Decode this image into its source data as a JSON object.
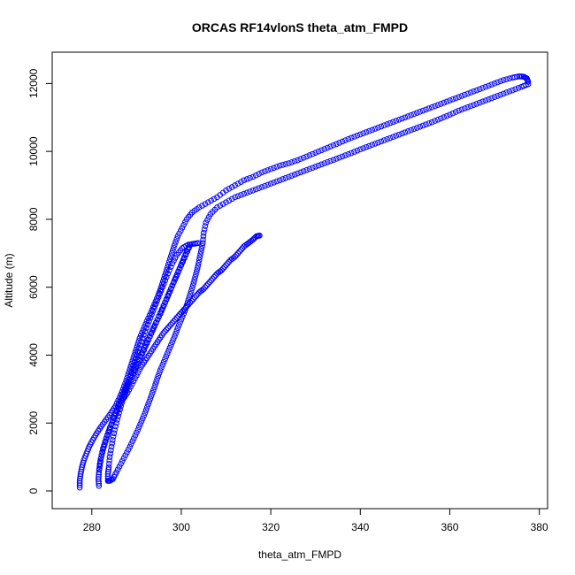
{
  "chart_data": {
    "type": "scatter",
    "title": "ORCAS RF14vlonS theta_atm_FMPD",
    "xlabel": "theta_atm_FMPD",
    "ylabel": "Altitude (m)",
    "xlim": [
      275.5,
      377.5
    ],
    "ylim": [
      0,
      12400
    ],
    "xticks": [
      280,
      300,
      320,
      340,
      360,
      380
    ],
    "yticks": [
      0,
      2000,
      4000,
      6000,
      8000,
      10000,
      12000
    ],
    "marker": "open-circle",
    "marker_color": "#0000ff",
    "grid": false,
    "legend": "none",
    "series": [
      {
        "points": [
          [
            277.3,
            100
          ],
          [
            277.3,
            300
          ],
          [
            277.5,
            500
          ],
          [
            277.8,
            700
          ],
          [
            278.2,
            900
          ],
          [
            278.8,
            1100
          ],
          [
            279.4,
            1300
          ],
          [
            280.2,
            1500
          ],
          [
            281.1,
            1700
          ],
          [
            282.1,
            1900
          ],
          [
            283.2,
            2100
          ],
          [
            284.3,
            2300
          ],
          [
            285.3,
            2500
          ],
          [
            286.2,
            2750
          ],
          [
            287.0,
            3000
          ],
          [
            287.7,
            3250
          ],
          [
            288.3,
            3500
          ],
          [
            288.9,
            3750
          ],
          [
            289.5,
            4000
          ],
          [
            290.1,
            4250
          ],
          [
            290.7,
            4500
          ],
          [
            291.5,
            4750
          ],
          [
            292.3,
            5000
          ],
          [
            293.2,
            5250
          ],
          [
            294.0,
            5500
          ],
          [
            294.8,
            5750
          ],
          [
            295.5,
            6000
          ],
          [
            296.1,
            6250
          ],
          [
            296.7,
            6500
          ],
          [
            297.3,
            6750
          ],
          [
            297.9,
            7000
          ],
          [
            298.5,
            7250
          ],
          [
            299.2,
            7500
          ],
          [
            300.2,
            7750
          ],
          [
            301.2,
            8000
          ],
          [
            302.4,
            8200
          ],
          [
            304.0,
            8350
          ],
          [
            306.0,
            8500
          ],
          [
            308.0,
            8650
          ],
          [
            310.0,
            8850
          ],
          [
            312.0,
            9000
          ],
          [
            314.0,
            9150
          ],
          [
            316.0,
            9250
          ],
          [
            318.0,
            9380
          ],
          [
            320.0,
            9480
          ],
          [
            322.0,
            9580
          ],
          [
            324.0,
            9650
          ],
          [
            326.0,
            9740
          ],
          [
            328.0,
            9850
          ],
          [
            330.0,
            9960
          ],
          [
            332.0,
            10070
          ],
          [
            334.0,
            10180
          ],
          [
            336.0,
            10290
          ],
          [
            338.0,
            10400
          ],
          [
            340.0,
            10500
          ],
          [
            342.0,
            10600
          ],
          [
            344.0,
            10700
          ],
          [
            346.0,
            10800
          ],
          [
            348.0,
            10900
          ],
          [
            350.0,
            11000
          ],
          [
            352.0,
            11100
          ],
          [
            354.0,
            11200
          ],
          [
            356.0,
            11300
          ],
          [
            358.0,
            11400
          ],
          [
            360.0,
            11500
          ],
          [
            362.0,
            11600
          ],
          [
            364.0,
            11700
          ],
          [
            366.0,
            11800
          ],
          [
            368.0,
            11900
          ],
          [
            370.0,
            12000
          ],
          [
            372.0,
            12100
          ],
          [
            374.0,
            12170
          ],
          [
            375.5,
            12210
          ],
          [
            376.5,
            12200
          ],
          [
            377.2,
            12150
          ],
          [
            377.5,
            12050
          ]
        ]
      },
      {
        "points": [
          [
            377.5,
            11980
          ],
          [
            376.0,
            11900
          ],
          [
            374.0,
            11800
          ],
          [
            372.0,
            11700
          ],
          [
            370.0,
            11600
          ],
          [
            368.0,
            11500
          ],
          [
            366.0,
            11400
          ],
          [
            364.0,
            11300
          ],
          [
            362.0,
            11200
          ],
          [
            360.0,
            11080
          ],
          [
            358.0,
            10970
          ],
          [
            356.0,
            10860
          ],
          [
            354.0,
            10760
          ],
          [
            352.0,
            10660
          ],
          [
            350.0,
            10560
          ],
          [
            348.0,
            10460
          ],
          [
            346.0,
            10360
          ],
          [
            344.0,
            10260
          ],
          [
            342.0,
            10160
          ],
          [
            340.0,
            10060
          ],
          [
            338.0,
            9950
          ],
          [
            336.0,
            9850
          ],
          [
            334.0,
            9750
          ],
          [
            332.0,
            9650
          ],
          [
            330.0,
            9550
          ],
          [
            328.0,
            9450
          ],
          [
            326.0,
            9350
          ],
          [
            324.0,
            9250
          ],
          [
            322.0,
            9150
          ],
          [
            320.0,
            9050
          ],
          [
            318.0,
            8950
          ],
          [
            316.0,
            8850
          ],
          [
            314.0,
            8750
          ],
          [
            312.0,
            8650
          ],
          [
            310.0,
            8500
          ],
          [
            308.0,
            8350
          ],
          [
            306.5,
            8150
          ],
          [
            305.5,
            7900
          ],
          [
            305.0,
            7600
          ],
          [
            304.8,
            7300
          ]
        ]
      },
      {
        "points": [
          [
            304.8,
            7300
          ],
          [
            304.4,
            7050
          ],
          [
            304.0,
            6800
          ],
          [
            303.6,
            6550
          ],
          [
            303.1,
            6300
          ],
          [
            302.6,
            6050
          ],
          [
            302.0,
            5800
          ],
          [
            301.4,
            5550
          ],
          [
            300.8,
            5300
          ],
          [
            300.0,
            5050
          ],
          [
            299.2,
            4800
          ],
          [
            298.5,
            4550
          ],
          [
            297.7,
            4300
          ],
          [
            296.9,
            4050
          ],
          [
            296.1,
            3800
          ],
          [
            295.3,
            3550
          ],
          [
            294.6,
            3300
          ],
          [
            294.0,
            3050
          ],
          [
            293.3,
            2800
          ],
          [
            292.6,
            2550
          ],
          [
            291.9,
            2300
          ],
          [
            291.1,
            2050
          ],
          [
            290.3,
            1800
          ],
          [
            289.4,
            1550
          ],
          [
            288.5,
            1300
          ],
          [
            287.5,
            1050
          ],
          [
            286.5,
            800
          ],
          [
            285.5,
            550
          ],
          [
            284.7,
            350
          ],
          [
            284.0,
            300
          ],
          [
            283.6,
            300
          ],
          [
            283.6,
            500
          ],
          [
            283.8,
            700
          ],
          [
            284.0,
            1000
          ],
          [
            284.4,
            1300
          ],
          [
            284.8,
            1600
          ],
          [
            285.3,
            1900
          ],
          [
            285.9,
            2200
          ],
          [
            286.5,
            2500
          ],
          [
            287.2,
            2800
          ],
          [
            287.9,
            3100
          ],
          [
            288.6,
            3400
          ],
          [
            289.3,
            3700
          ],
          [
            290.0,
            4000
          ],
          [
            290.8,
            4300
          ],
          [
            291.6,
            4600
          ],
          [
            292.5,
            4900
          ],
          [
            293.4,
            5200
          ],
          [
            294.3,
            5500
          ],
          [
            295.2,
            5800
          ],
          [
            296.1,
            6100
          ],
          [
            297.0,
            6400
          ],
          [
            298.0,
            6700
          ],
          [
            299.0,
            6950
          ],
          [
            300.2,
            7150
          ],
          [
            301.5,
            7250
          ],
          [
            302.8,
            7280
          ],
          [
            303.8,
            7300
          ]
        ]
      },
      {
        "points": [
          [
            281.6,
            150
          ],
          [
            281.5,
            350
          ],
          [
            281.6,
            550
          ],
          [
            281.8,
            800
          ],
          [
            282.2,
            1050
          ],
          [
            282.7,
            1300
          ],
          [
            283.3,
            1550
          ],
          [
            283.9,
            1800
          ],
          [
            284.6,
            2050
          ],
          [
            285.3,
            2300
          ],
          [
            286.0,
            2550
          ],
          [
            286.8,
            2800
          ],
          [
            287.6,
            3050
          ],
          [
            288.4,
            3300
          ],
          [
            289.3,
            3550
          ],
          [
            290.2,
            3800
          ],
          [
            291.1,
            4050
          ],
          [
            292.0,
            4300
          ],
          [
            292.9,
            4550
          ],
          [
            293.8,
            4800
          ],
          [
            294.7,
            5050
          ],
          [
            295.6,
            5300
          ],
          [
            296.4,
            5550
          ],
          [
            297.2,
            5800
          ],
          [
            298.0,
            6050
          ],
          [
            298.8,
            6300
          ],
          [
            299.6,
            6550
          ],
          [
            300.4,
            6800
          ],
          [
            301.2,
            7050
          ],
          [
            302.0,
            7250
          ],
          [
            301.0,
            6950
          ],
          [
            300.0,
            6650
          ],
          [
            299.0,
            6350
          ],
          [
            298.0,
            6050
          ],
          [
            297.0,
            5750
          ],
          [
            296.0,
            5450
          ],
          [
            295.0,
            5150
          ],
          [
            294.0,
            4850
          ],
          [
            293.0,
            4550
          ],
          [
            292.0,
            4250
          ],
          [
            291.0,
            3950
          ],
          [
            290.0,
            3650
          ],
          [
            289.0,
            3350
          ],
          [
            288.0,
            3050
          ],
          [
            287.0,
            2750
          ],
          [
            286.0,
            2450
          ],
          [
            285.0,
            2150
          ],
          [
            284.0,
            1850
          ],
          [
            283.2,
            1550
          ],
          [
            282.5,
            1250
          ],
          [
            282.0,
            950
          ],
          [
            281.7,
            650
          ]
        ]
      },
      {
        "points": [
          [
            287.0,
            2700
          ],
          [
            288.0,
            2900
          ],
          [
            289.0,
            3150
          ],
          [
            290.0,
            3400
          ],
          [
            291.0,
            3650
          ],
          [
            292.0,
            3850
          ],
          [
            293.0,
            4050
          ],
          [
            294.0,
            4250
          ],
          [
            295.0,
            4450
          ],
          [
            296.0,
            4650
          ],
          [
            297.0,
            4800
          ],
          [
            298.0,
            4950
          ],
          [
            299.0,
            5100
          ],
          [
            300.0,
            5250
          ],
          [
            301.0,
            5400
          ],
          [
            302.0,
            5550
          ],
          [
            303.0,
            5700
          ],
          [
            304.0,
            5850
          ],
          [
            305.0,
            5950
          ],
          [
            306.0,
            6100
          ],
          [
            307.0,
            6250
          ],
          [
            308.0,
            6400
          ],
          [
            309.0,
            6500
          ],
          [
            310.0,
            6650
          ],
          [
            311.0,
            6800
          ],
          [
            312.0,
            6900
          ],
          [
            313.0,
            7050
          ],
          [
            314.0,
            7200
          ],
          [
            315.0,
            7300
          ],
          [
            316.0,
            7400
          ],
          [
            316.8,
            7500
          ],
          [
            317.5,
            7520
          ]
        ]
      }
    ]
  }
}
